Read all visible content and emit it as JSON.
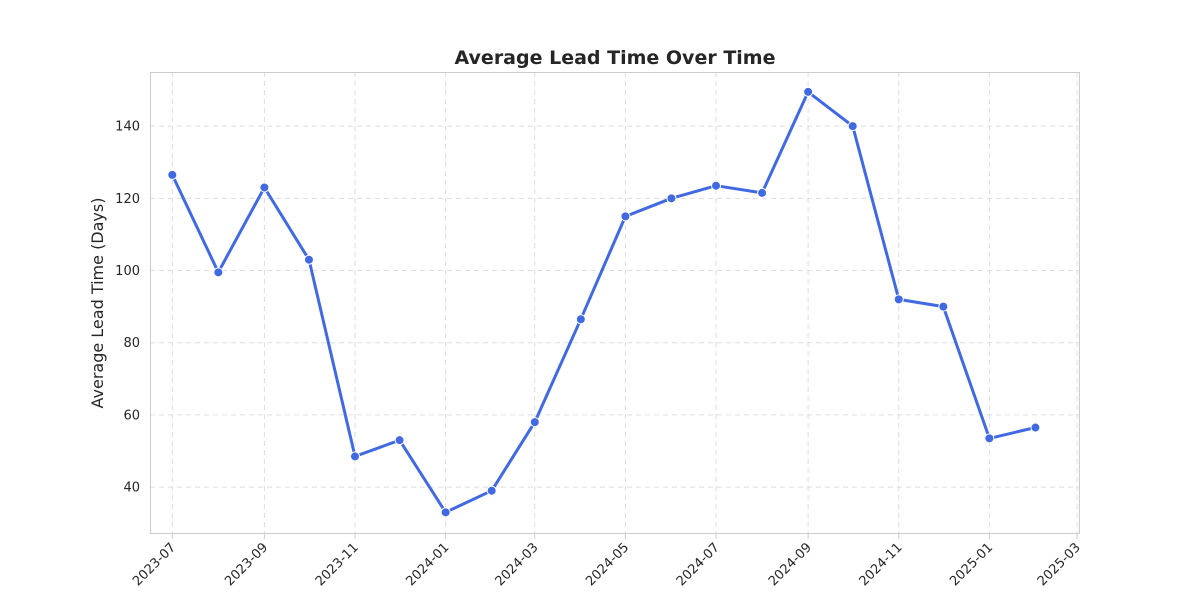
{
  "chart_data": {
    "type": "line",
    "title": "Average Lead Time Over Time",
    "xlabel": "",
    "ylabel": "Average Lead Time (Days)",
    "color": "#4169E1",
    "grid": true,
    "x_tick_labels": [
      "2023-07",
      "2023-09",
      "2023-11",
      "2024-01",
      "2024-03",
      "2024-05",
      "2024-07",
      "2024-09",
      "2024-11",
      "2025-01",
      "2025-03"
    ],
    "y_ticks": [
      40,
      60,
      80,
      100,
      120,
      140
    ],
    "ylim": [
      27,
      155
    ],
    "xlim": [
      "2023-06-16",
      "2025-03-03"
    ],
    "x": [
      "2023-07-01",
      "2023-08-01",
      "2023-09-01",
      "2023-10-01",
      "2023-11-01",
      "2023-12-01",
      "2024-01-01",
      "2024-02-01",
      "2024-03-01",
      "2024-04-01",
      "2024-05-01",
      "2024-06-01",
      "2024-07-01",
      "2024-08-01",
      "2024-09-01",
      "2024-10-01",
      "2024-11-01",
      "2024-12-01",
      "2025-01-01",
      "2025-02-01"
    ],
    "values": [
      126.5,
      99.5,
      123,
      103,
      48.5,
      53,
      33,
      39,
      58,
      86.5,
      115,
      120,
      123.5,
      121.5,
      149.5,
      140,
      92,
      90,
      53.5,
      56.5
    ]
  }
}
